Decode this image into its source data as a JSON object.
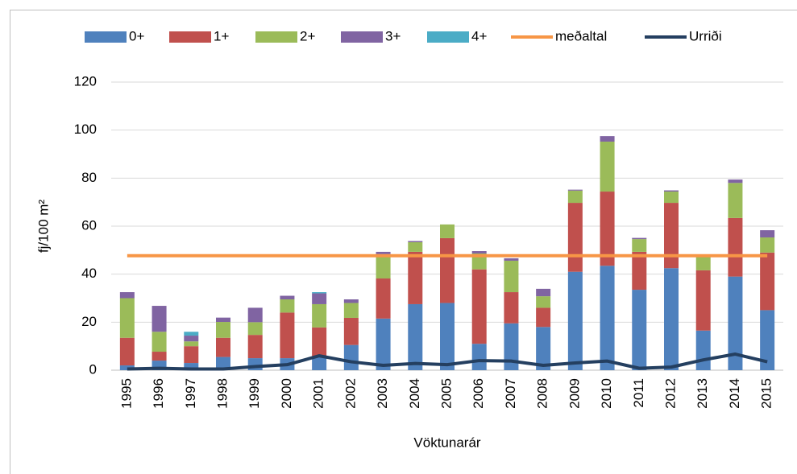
{
  "chart_data": {
    "type": "bar",
    "stacked": true,
    "x_label": "Vöktunarár",
    "y_label": "fj/100 m²",
    "categories": [
      "1995",
      "1996",
      "1997",
      "1998",
      "1999",
      "2000",
      "2001",
      "2002",
      "2003",
      "2004",
      "2005",
      "2006",
      "2007",
      "2008",
      "2009",
      "2010",
      "2011",
      "2012",
      "2013",
      "2014",
      "2015"
    ],
    "series": [
      {
        "name": "0+",
        "type": "bar",
        "color": "#4f81bd",
        "values": [
          2,
          4,
          3,
          5.5,
          5,
          5,
          5.5,
          10.5,
          21.5,
          27.5,
          28,
          11,
          19.5,
          18,
          41,
          43.5,
          33.5,
          42.5,
          16.5,
          39,
          25
        ]
      },
      {
        "name": "1+",
        "type": "bar",
        "color": "#c0504d",
        "values": [
          11.5,
          3.7,
          7,
          8,
          9.7,
          19,
          12.3,
          11.3,
          16.7,
          21.8,
          27,
          31,
          13,
          8,
          28.7,
          30.9,
          15.8,
          27.2,
          25.1,
          24.4,
          24
        ]
      },
      {
        "name": "2+",
        "type": "bar",
        "color": "#9bbb59",
        "values": [
          16.5,
          8.3,
          2,
          6.6,
          5.3,
          5.5,
          9.7,
          6.2,
          10.1,
          4,
          5.7,
          6.6,
          13.1,
          4.8,
          5.1,
          20.8,
          5.3,
          4.7,
          6,
          14.6,
          6.3
        ]
      },
      {
        "name": "3+",
        "type": "bar",
        "color": "#8064a2",
        "values": [
          2.5,
          10.8,
          2.4,
          1.8,
          6,
          1.5,
          4.5,
          1.5,
          1,
          0.5,
          0,
          1,
          1,
          3.1,
          0.4,
          2.3,
          0.5,
          0.5,
          0,
          1.4,
          3
        ]
      },
      {
        "name": "4+",
        "type": "bar",
        "color": "#4bacc6",
        "values": [
          0,
          0,
          1.6,
          0,
          0,
          0,
          0.5,
          0,
          0,
          0,
          0,
          0,
          0,
          0,
          0,
          0,
          0,
          0,
          0,
          0,
          0
        ]
      },
      {
        "name": "meðaltal",
        "type": "line",
        "color": "#f79646",
        "values": [
          47.7,
          47.7,
          47.7,
          47.7,
          47.7,
          47.7,
          47.7,
          47.7,
          47.7,
          47.7,
          47.7,
          47.7,
          47.7,
          47.7,
          47.7,
          47.7,
          47.7,
          47.7,
          47.7,
          47.7,
          47.7
        ]
      },
      {
        "name": "Urriði",
        "type": "line",
        "color": "#243f60",
        "values": [
          0.5,
          0.8,
          0.5,
          0.5,
          1.5,
          2.3,
          6,
          3.5,
          2,
          2.8,
          2.3,
          4,
          3.8,
          2,
          3,
          3.8,
          0.8,
          1.3,
          4.3,
          6.7,
          3.5
        ]
      }
    ],
    "ylim": [
      0,
      120
    ],
    "yticks": [
      0,
      20,
      40,
      60,
      80,
      100,
      120
    ],
    "grid": true,
    "legend": "top"
  }
}
